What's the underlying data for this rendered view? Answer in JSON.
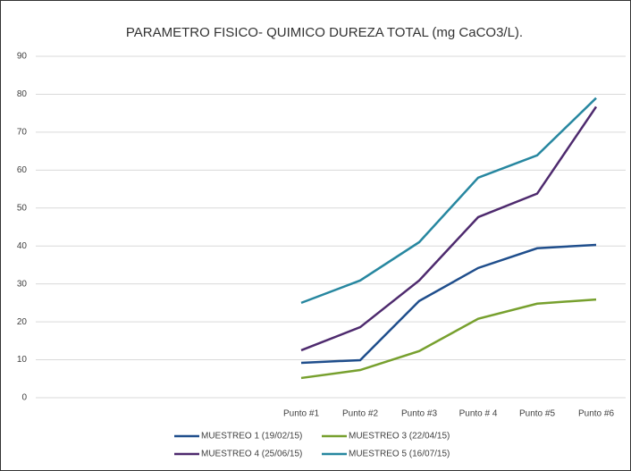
{
  "chart_data": {
    "type": "line",
    "title": "PARAMETRO FISICO- QUIMICO DUREZA TOTAL (mg CaCO3/L).",
    "categories": [
      null,
      null,
      null,
      null,
      "Punto #1",
      "Punto #2",
      "Punto #3",
      "Punto # 4",
      "Punto #5",
      "Punto #6"
    ],
    "series": [
      {
        "name": "MUESTREO 1 (19/02/15)",
        "color": "#1f4e8c",
        "values": [
          null,
          null,
          null,
          null,
          9.2,
          9.9,
          25.5,
          34.2,
          39.4,
          40.3
        ]
      },
      {
        "name": "MUESTREO 3  (22/04/15)",
        "color": "#77a02e",
        "values": [
          null,
          null,
          null,
          null,
          5.2,
          7.3,
          12.3,
          20.8,
          24.8,
          25.9
        ]
      },
      {
        "name": "MUESTREO 4  (25/06/15)",
        "color": "#4e2a6e",
        "values": [
          null,
          null,
          null,
          null,
          12.5,
          18.6,
          30.9,
          47.6,
          53.8,
          76.7
        ]
      },
      {
        "name": "MUESTREO 5 (16/07/15)",
        "color": "#2787a0",
        "values": [
          null,
          null,
          null,
          null,
          25,
          30.9,
          41,
          58,
          63.9,
          79
        ]
      }
    ],
    "ylim": [
      0,
      90
    ],
    "yticks": [
      0,
      10,
      20,
      30,
      40,
      50,
      60,
      70,
      80,
      90
    ],
    "grid": true
  }
}
